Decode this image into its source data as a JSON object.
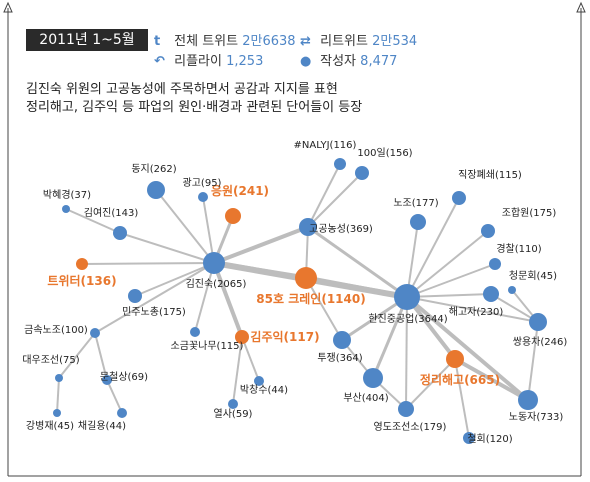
{
  "header": {
    "period": "2011년 1~5월",
    "total_label": "전체 트위트",
    "total_value": "2만6638",
    "retweet_label": "리트위트",
    "retweet_value": "2만534",
    "reply_label": "리플라이",
    "reply_value": "1,253",
    "author_label": "작성자",
    "author_value": "8,477"
  },
  "description": [
    "김진숙 위원의 고공농성에 주목하면서 공감과 지지를 표현",
    "정리해고, 김주익 등 파업의 원인·배경과 관련된 단어들이 등장"
  ],
  "colors": {
    "blue": "#4f86c6",
    "orange": "#e8772e",
    "edge": "#bdbdbd"
  },
  "graph": {
    "nodes": [
      {
        "id": "kjs",
        "label": "김진숙(2065)",
        "type": "blue"
      },
      {
        "id": "hanjin",
        "label": "한진중공업(3644)",
        "type": "blue"
      },
      {
        "id": "crane",
        "label": "85호 크레인(1140)",
        "type": "orange"
      },
      {
        "id": "gogong",
        "label": "고공농성(369)",
        "type": "blue"
      },
      {
        "id": "kji",
        "label": "김주익(117)",
        "type": "orange"
      },
      {
        "id": "jungri",
        "label": "정리해고(665)",
        "type": "orange"
      },
      {
        "id": "eungwon",
        "label": "응원(241)",
        "type": "orange"
      },
      {
        "id": "twitter",
        "label": "트위터(136)",
        "type": "orange"
      },
      {
        "id": "nalyj",
        "label": "#NALYJ(116)",
        "type": "blue"
      },
      {
        "id": "100il",
        "label": "100일(156)",
        "type": "blue"
      },
      {
        "id": "jikjang",
        "label": "직장폐쇄(115)",
        "type": "blue"
      },
      {
        "id": "nojo",
        "label": "노조(177)",
        "type": "blue"
      },
      {
        "id": "johapwon",
        "label": "조합원(175)",
        "type": "blue"
      },
      {
        "id": "gyeongchal",
        "label": "경찰(110)",
        "type": "blue"
      },
      {
        "id": "cheongmun",
        "label": "청문회(45)",
        "type": "blue"
      },
      {
        "id": "haego",
        "label": "해고자(230)",
        "type": "blue"
      },
      {
        "id": "ssangyong",
        "label": "쌍용차(246)",
        "type": "blue"
      },
      {
        "id": "nodongja",
        "label": "노동자(733)",
        "type": "blue"
      },
      {
        "id": "cheolhoe",
        "label": "철회(120)",
        "type": "blue"
      },
      {
        "id": "yeongdo",
        "label": "영도조선소(179)",
        "type": "blue"
      },
      {
        "id": "busan",
        "label": "부산(404)",
        "type": "blue"
      },
      {
        "id": "tujaeng",
        "label": "투쟁(364)",
        "type": "blue"
      },
      {
        "id": "dongji",
        "label": "동지(262)",
        "type": "blue"
      },
      {
        "id": "gwanggo",
        "label": "광고(95)",
        "type": "blue"
      },
      {
        "id": "bhk",
        "label": "박혜경(37)",
        "type": "blue"
      },
      {
        "id": "kyj",
        "label": "김여진(143)",
        "type": "blue"
      },
      {
        "id": "minju",
        "label": "민주노총(175)",
        "type": "blue"
      },
      {
        "id": "sogeum",
        "label": "소금꽃나무(115)",
        "type": "blue"
      },
      {
        "id": "geumsok",
        "label": "금속노조(100)",
        "type": "blue"
      },
      {
        "id": "daewoo",
        "label": "대우조선(75)",
        "type": "blue"
      },
      {
        "id": "mcs",
        "label": "문철상(69)",
        "type": "blue"
      },
      {
        "id": "kbj",
        "label": "강병재(45)",
        "type": "blue"
      },
      {
        "id": "cky",
        "label": "채길용(44)",
        "type": "blue"
      },
      {
        "id": "bcs",
        "label": "박창수(44)",
        "type": "blue"
      },
      {
        "id": "yeolsa",
        "label": "열사(59)",
        "type": "blue"
      }
    ],
    "edges": [
      [
        "kjs",
        "hanjin"
      ],
      [
        "kjs",
        "crane"
      ],
      [
        "kjs",
        "gogong"
      ],
      [
        "kjs",
        "kji"
      ],
      [
        "kjs",
        "eungwon"
      ],
      [
        "kjs",
        "twitter"
      ],
      [
        "kjs",
        "dongji"
      ],
      [
        "kjs",
        "gwanggo"
      ],
      [
        "kjs",
        "kyj"
      ],
      [
        "kjs",
        "minju"
      ],
      [
        "kjs",
        "sogeum"
      ],
      [
        "kjs",
        "geumsok"
      ],
      [
        "kyj",
        "bhk"
      ],
      [
        "crane",
        "hanjin"
      ],
      [
        "crane",
        "gogong"
      ],
      [
        "crane",
        "tujaeng"
      ],
      [
        "gogong",
        "nalyj"
      ],
      [
        "gogong",
        "100il"
      ],
      [
        "gogong",
        "hanjin"
      ],
      [
        "hanjin",
        "nojo"
      ],
      [
        "hanjin",
        "jikjang"
      ],
      [
        "hanjin",
        "johapwon"
      ],
      [
        "hanjin",
        "gyeongchal"
      ],
      [
        "hanjin",
        "haego"
      ],
      [
        "hanjin",
        "ssangyong"
      ],
      [
        "hanjin",
        "nodongja"
      ],
      [
        "hanjin",
        "jungri"
      ],
      [
        "hanjin",
        "tujaeng"
      ],
      [
        "hanjin",
        "busan"
      ],
      [
        "hanjin",
        "yeongdo"
      ],
      [
        "ssangyong",
        "cheongmun"
      ],
      [
        "ssangyong",
        "haego"
      ],
      [
        "ssangyong",
        "nodongja"
      ],
      [
        "jungri",
        "nodongja"
      ],
      [
        "jungri",
        "cheolhoe"
      ],
      [
        "jungri",
        "yeongdo"
      ],
      [
        "busan",
        "yeongdo"
      ],
      [
        "busan",
        "tujaeng"
      ],
      [
        "kji",
        "bcs"
      ],
      [
        "kji",
        "yeolsa"
      ],
      [
        "geumsok",
        "daewoo"
      ],
      [
        "geumsok",
        "mcs"
      ],
      [
        "daewoo",
        "kbj"
      ],
      [
        "mcs",
        "cky"
      ]
    ]
  }
}
